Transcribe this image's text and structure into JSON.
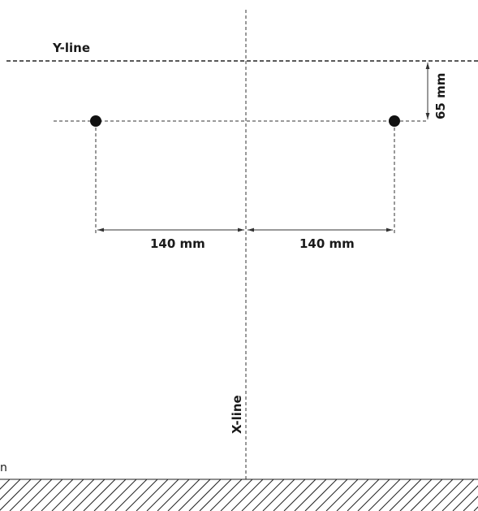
{
  "labels": {
    "y_line": "Y-line",
    "x_line": "X-line",
    "offset_dimension": "65 mm",
    "left_dimension": "140 mm",
    "right_dimension": "140 mm",
    "edge_text": "n"
  },
  "colors": {
    "ink": "#1a1a1a",
    "line": "#333333",
    "background": "#ffffff"
  }
}
